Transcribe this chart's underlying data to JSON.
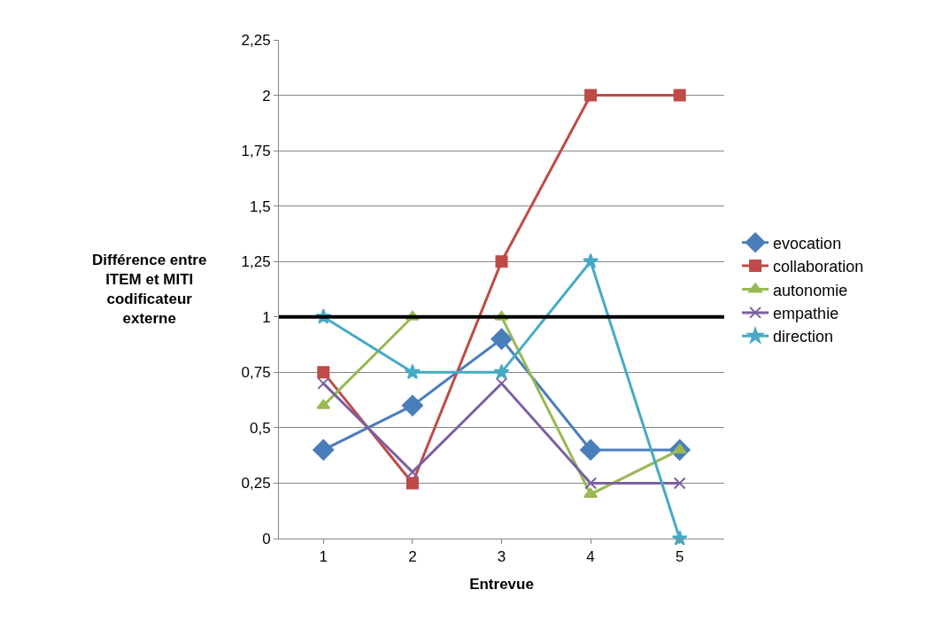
{
  "chart_data": {
    "type": "line",
    "xlabel": "Entrevue",
    "ylabel": "Différence entre\nITEM et MITI\ncodificateur\nexterne",
    "categories": [
      "1",
      "2",
      "3",
      "4",
      "5"
    ],
    "series": [
      {
        "name": "evocation",
        "color": "#4a7ebb",
        "marker": "diamond",
        "values": [
          0.4,
          0.6,
          0.9,
          0.4,
          0.4
        ]
      },
      {
        "name": "collaboration",
        "color": "#be4b48",
        "marker": "square",
        "values": [
          0.75,
          0.25,
          1.25,
          2,
          2
        ]
      },
      {
        "name": "autonomie",
        "color": "#98b954",
        "marker": "triangle",
        "values": [
          0.6,
          1,
          1,
          0.2,
          0.4
        ]
      },
      {
        "name": "empathie",
        "color": "#7d60a0",
        "marker": "cross",
        "values": [
          0.7,
          0.3,
          0.7,
          0.25,
          0.25
        ]
      },
      {
        "name": "direction",
        "color": "#46aac5",
        "marker": "star",
        "values": [
          1,
          0.75,
          0.75,
          1.25,
          0
        ]
      }
    ],
    "ref_lines": [
      {
        "axis": "y",
        "value": 1,
        "color": "#000000"
      }
    ],
    "ylim": [
      0,
      2.25
    ],
    "yticks": [
      0,
      {
        "value": 0.25,
        "label": "0,25"
      },
      {
        "value": 0.5,
        "label": "0,5"
      },
      {
        "value": 0.75,
        "label": "0,75"
      },
      1,
      {
        "value": 1.25,
        "label": "1,25"
      },
      {
        "value": 1.5,
        "label": "1,5"
      },
      {
        "value": 1.75,
        "label": "1,75"
      },
      2,
      {
        "value": 2.25,
        "label": "2,25"
      }
    ],
    "grid": "y",
    "legend": "right",
    "line_style": "solid"
  }
}
